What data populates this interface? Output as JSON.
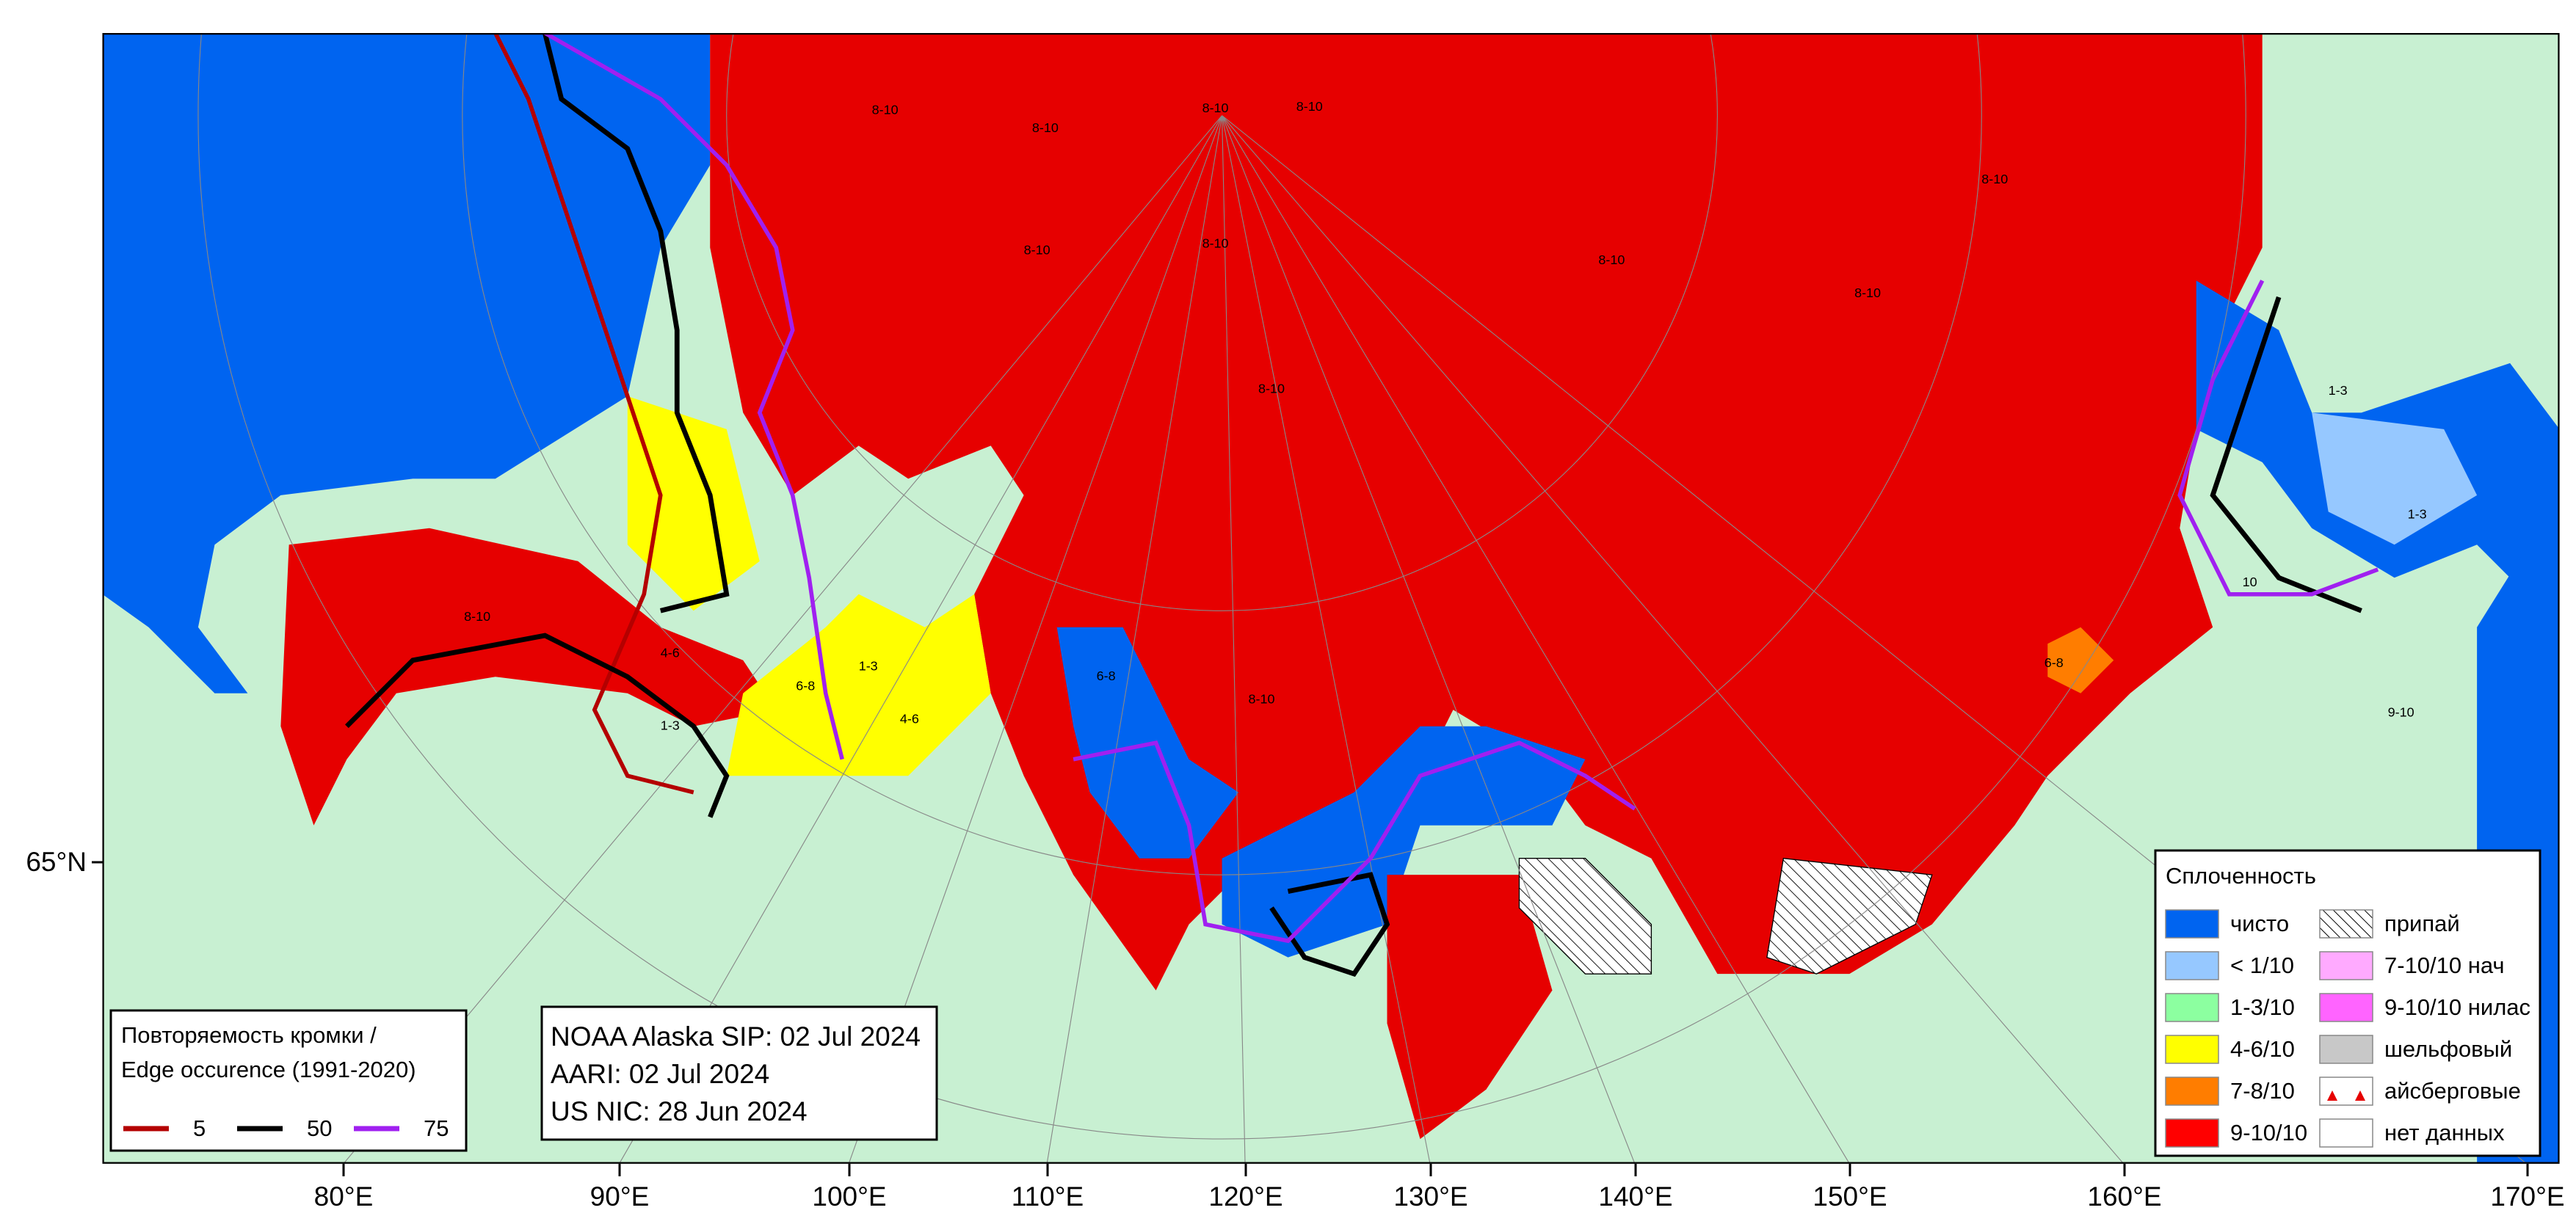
{
  "longitudes": [
    "80°E",
    "90°E",
    "100°E",
    "110°E",
    "120°E",
    "130°E",
    "140°E",
    "150°E",
    "160°E",
    "170°E"
  ],
  "latitudes": [
    "65°N"
  ],
  "edge_legend": {
    "title_lines": [
      "Повторяемость кромки /",
      "Edge occurence (1991-2020)"
    ],
    "items": [
      {
        "label": "5",
        "color": "#b40000"
      },
      {
        "label": "50",
        "color": "#000000"
      },
      {
        "label": "75",
        "color": "#a020f0"
      }
    ]
  },
  "sources": [
    "NOAA Alaska SIP: 02 Jul 2024",
    "AARI: 02 Jul 2024",
    "US NIC: 28 Jun 2024"
  ],
  "concentration_legend": {
    "title": "Сплоченность",
    "items": [
      {
        "label": "чисто",
        "color": "#0064f0"
      },
      {
        "label": "< 1/10",
        "color": "#96c8ff"
      },
      {
        "label": "1-3/10",
        "color": "#8cffa0"
      },
      {
        "label": "4-6/10",
        "color": "#ffff00"
      },
      {
        "label": "7-8/10",
        "color": "#ff7d00"
      },
      {
        "label": "9-10/10",
        "color": "#ff0000"
      },
      {
        "label": "припай",
        "color": "#ffffff",
        "pattern": "hatch"
      },
      {
        "label": "7-10/10 нач",
        "color": "#ffaaff"
      },
      {
        "label": "9-10/10 нилас",
        "color": "#ff64ff"
      },
      {
        "label": "шельфовый",
        "color": "#c8c8c8"
      },
      {
        "label": "айсберговые",
        "color": "#ffffff",
        "pattern": "triangles"
      },
      {
        "label": "нет данных",
        "color": "#ffffff"
      }
    ]
  },
  "map_labels": [
    "8-10",
    "8-10",
    "8-10",
    "8-10",
    "8-10",
    "8-10",
    "8-10",
    "8-10",
    "8-10",
    "8-10",
    "8-10",
    "8-10",
    "1-3",
    "4-6",
    "4-6",
    "6-8",
    "1-3",
    "1-3",
    "6-8",
    "1-3",
    "10",
    "6-8",
    "9-10"
  ]
}
